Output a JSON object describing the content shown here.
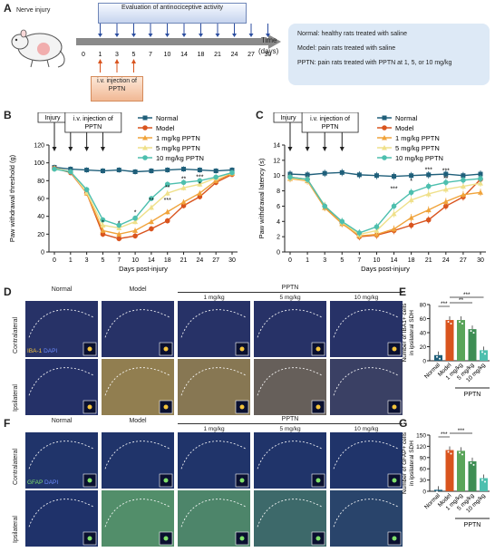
{
  "panels": [
    "A",
    "B",
    "C",
    "D",
    "E",
    "F",
    "G"
  ],
  "panel_a": {
    "nerve_injury": "Nerve injury",
    "evaluation": "Evaluation of antinociceptive activity",
    "iv_injection": "i.v. injection of PPTN",
    "time_label": "Time",
    "time_unit": "(days)",
    "timeline_ticks": [
      "0",
      "1",
      "3",
      "5",
      "7",
      "10",
      "14",
      "18",
      "21",
      "24",
      "27",
      "30"
    ],
    "legend": [
      "Normal: healthy rats treated with saline",
      "Model: pain rats treated with saline",
      "PPTN: pain rats treated with PPTN at 1, 5, or 10 mg/kg"
    ]
  },
  "annotations": {
    "injury": "Injury",
    "iv_injection": "i.v. injection of PPTN"
  },
  "colors": {
    "Normal": "#1f5f7a",
    "Model": "#d9541e",
    "1 mg/kg PPTN": "#f0a33a",
    "5 mg/kg PPTN": "#efe08a",
    "10 mg/kg PPTN": "#4dbfae",
    "iba1": "#f3c33b",
    "gfap": "#7fe06a",
    "dapi": "#3b5bd9"
  },
  "chart_data": [
    {
      "type": "line",
      "panel": "B",
      "xlabel": "Days post-injury",
      "ylabel": "Paw withdrawal threshold (g)",
      "x": [
        0,
        1,
        3,
        5,
        7,
        10,
        14,
        18,
        21,
        24,
        27,
        30
      ],
      "ylim": [
        0,
        120
      ],
      "yticks": [
        0,
        20,
        40,
        60,
        80,
        100,
        120
      ],
      "series": [
        {
          "name": "Normal",
          "values": [
            95,
            93,
            92,
            91,
            92,
            90,
            91,
            92,
            93,
            92,
            91,
            92
          ]
        },
        {
          "name": "Model",
          "values": [
            94,
            89,
            66,
            20,
            15,
            18,
            26,
            35,
            52,
            62,
            78,
            87
          ]
        },
        {
          "name": "1 mg/kg PPTN",
          "values": [
            94,
            90,
            66,
            24,
            20,
            24,
            34,
            45,
            56,
            66,
            80,
            88
          ]
        },
        {
          "name": "5 mg/kg PPTN",
          "values": [
            94,
            90,
            67,
            30,
            27,
            34,
            50,
            66,
            72,
            76,
            83,
            89
          ]
        },
        {
          "name": "10 mg/kg PPTN",
          "values": [
            93,
            90,
            70,
            36,
            30,
            38,
            60,
            76,
            78,
            80,
            84,
            89
          ]
        }
      ],
      "significance": [
        "*",
        "*",
        "*",
        "**",
        "**",
        "***",
        "**",
        "***",
        "*"
      ]
    },
    {
      "type": "line",
      "panel": "C",
      "xlabel": "Days post-injury",
      "ylabel": "Paw withdrawal latency (s)",
      "x": [
        0,
        1,
        3,
        5,
        7,
        10,
        14,
        18,
        21,
        24,
        27,
        30
      ],
      "ylim": [
        0,
        14
      ],
      "yticks": [
        0,
        2,
        4,
        6,
        8,
        10,
        12,
        14
      ],
      "series": [
        {
          "name": "Normal",
          "values": [
            10.2,
            10.1,
            10.3,
            10.4,
            10.1,
            10.0,
            9.9,
            10.0,
            10.1,
            10.2,
            10.0,
            10.2
          ]
        },
        {
          "name": "Model",
          "values": [
            9.8,
            9.5,
            6.0,
            3.8,
            2.0,
            2.2,
            2.8,
            3.5,
            4.2,
            6.0,
            7.2,
            9.5
          ]
        },
        {
          "name": "1 mg/kg PPTN",
          "values": [
            9.6,
            9.3,
            5.8,
            3.7,
            2.1,
            2.3,
            3.0,
            4.5,
            5.5,
            6.6,
            7.5,
            7.8
          ]
        },
        {
          "name": "5 mg/kg PPTN",
          "values": [
            9.7,
            9.4,
            6.1,
            3.9,
            2.3,
            2.8,
            5.0,
            6.8,
            7.6,
            8.2,
            8.6,
            9.0
          ]
        },
        {
          "name": "10 mg/kg PPTN",
          "values": [
            9.8,
            9.5,
            6.0,
            4.0,
            2.5,
            3.3,
            6.0,
            7.8,
            8.6,
            9.1,
            9.4,
            9.6
          ]
        }
      ],
      "significance": [
        "***",
        "*",
        "***",
        "***",
        "**"
      ]
    },
    {
      "type": "bar",
      "panel": "E",
      "ylabel": "Number of IBA1+ cells in ipsilateral SDH",
      "categories": [
        "Normal",
        "Model",
        "1 mg/kg",
        "5 mg/kg",
        "10 mg/kg"
      ],
      "values": [
        8,
        58,
        58,
        45,
        15
      ],
      "ylim": [
        0,
        80
      ],
      "yticks": [
        0,
        20,
        40,
        60,
        80
      ],
      "group_label": "PPTN",
      "significance": [
        "***",
        "**",
        "***"
      ]
    },
    {
      "type": "bar",
      "panel": "G",
      "ylabel": "Number of GFAP+ cells in ipsilateral SDH",
      "categories": [
        "Normal",
        "Model",
        "1 mg/kg",
        "5 mg/kg",
        "10 mg/kg"
      ],
      "values": [
        4,
        110,
        108,
        80,
        35
      ],
      "ylim": [
        0,
        150
      ],
      "yticks": [
        0,
        30,
        60,
        90,
        120,
        150
      ],
      "group_label": "PPTN",
      "significance": [
        "***",
        "***"
      ]
    }
  ],
  "panel_d": {
    "columns": [
      "Normal",
      "Model",
      "1 mg/kg",
      "5 mg/kg",
      "10 mg/kg"
    ],
    "group_label": "PPTN",
    "rows": [
      "Contralateral",
      "Ipsilateral"
    ],
    "marker": "IBA-1",
    "dapi": "DAPI"
  },
  "panel_f": {
    "columns": [
      "Normal",
      "Model",
      "1 mg/kg",
      "5 mg/kg",
      "10 mg/kg"
    ],
    "group_label": "PPTN",
    "rows": [
      "Contralateral",
      "Ipsilateral"
    ],
    "marker": "GFAP",
    "dapi": "DAPI"
  }
}
